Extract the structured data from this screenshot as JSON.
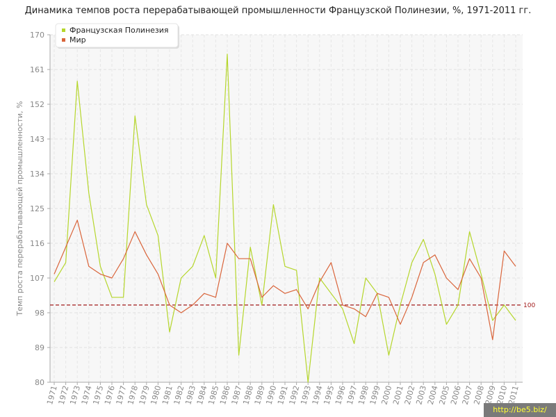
{
  "chart_data": {
    "type": "line",
    "title": "Динамика темпов роста перерабатывающей промышленности Французской Полинезии, %, 1971-2011 гг.",
    "xlabel": "",
    "ylabel": "Темп роста перерабатывающей промышленности, %",
    "ylim": [
      80,
      170
    ],
    "yticks": [
      80,
      89,
      98,
      107,
      116,
      125,
      134,
      143,
      152,
      161,
      170
    ],
    "grid": true,
    "legend_position": "top-left",
    "categories": [
      "1971",
      "1972",
      "1973",
      "1974",
      "1975",
      "1976",
      "1977",
      "1978",
      "1979",
      "1980",
      "1981",
      "1982",
      "1983",
      "1984",
      "1985",
      "1986",
      "1987",
      "1988",
      "1989",
      "1990",
      "1991",
      "1992",
      "1993",
      "1994",
      "1995",
      "1996",
      "1997",
      "1998",
      "1999",
      "2000",
      "2001",
      "2002",
      "2003",
      "2004",
      "2005",
      "2006",
      "2007",
      "2008",
      "2009",
      "2010",
      "2011"
    ],
    "series": [
      {
        "name": "Французская Полинезия",
        "color": "#b5d62b",
        "values": [
          106,
          111,
          158,
          129,
          110,
          102,
          102,
          149,
          126,
          118,
          93,
          107,
          110,
          118,
          107,
          165,
          87,
          115,
          100,
          126,
          110,
          109,
          80,
          107,
          103,
          99,
          90,
          107,
          103,
          87,
          100,
          111,
          117,
          108,
          95,
          100,
          119,
          108,
          96,
          100,
          96
        ]
      },
      {
        "name": "Мир",
        "color": "#d9643a",
        "values": [
          108,
          115,
          122,
          110,
          108,
          107,
          112,
          119,
          113,
          108,
          100,
          98,
          100,
          103,
          102,
          116,
          112,
          112,
          102,
          105,
          103,
          104,
          99,
          106,
          111,
          100,
          99,
          97,
          103,
          102,
          95,
          102,
          111,
          113,
          107,
          104,
          112,
          107,
          91,
          114,
          110
        ]
      }
    ],
    "reference_line": {
      "value": 100,
      "label": "100",
      "color": "#a01818"
    }
  },
  "watermark": "http://be5.biz/"
}
